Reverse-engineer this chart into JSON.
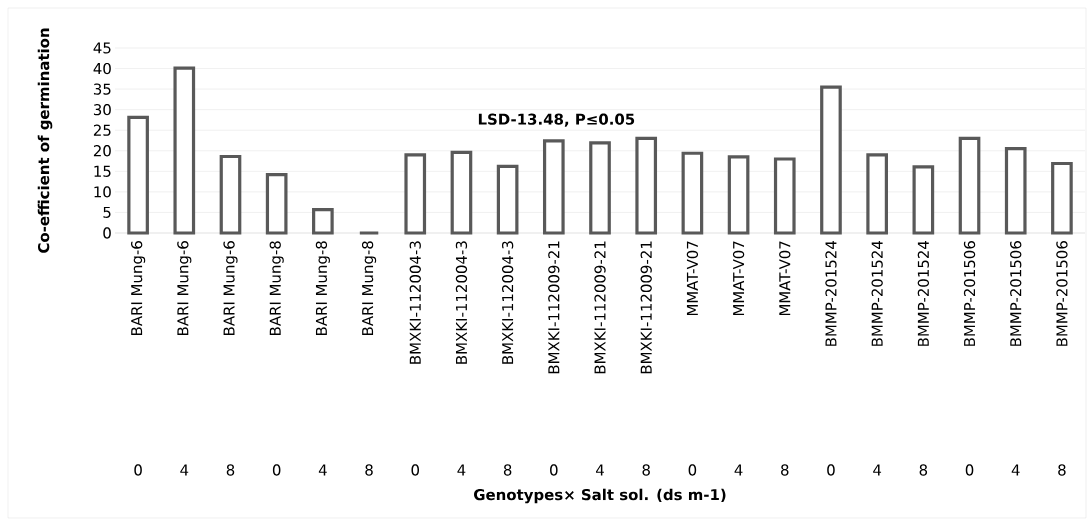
{
  "chart_data": {
    "type": "bar",
    "ylabel": "Co-efficient of germination",
    "categories": [
      "BARI Mung-6",
      "BARI Mung-6",
      "BARI Mung-6",
      "BARI Mung-8",
      "BARI Mung-8",
      "BARI Mung-8",
      "BMXKI-112004-3",
      "BMXKI-112004-3",
      "BMXKI-112004-3",
      "BMXKI-112009-21",
      "BMXKI-112009-21",
      "BMXKI-112009-21",
      "MMAT-V07",
      "MMAT-V07",
      "MMAT-V07",
      "BMMP-201524",
      "BMMP-201524",
      "BMMP-201524",
      "BMMP-201506",
      "BMMP-201506",
      "BMMP-201506"
    ],
    "values": [
      28.1,
      40.1,
      18.6,
      14.2,
      5.7,
      0,
      19.0,
      19.6,
      16.2,
      22.4,
      21.9,
      23.0,
      19.4,
      18.5,
      18.0,
      35.5,
      19.0,
      16.1,
      23.0,
      20.5,
      16.9
    ],
    "color": "#595959",
    "ylim": [
      0,
      45
    ],
    "yticks": [
      0,
      5,
      10,
      15,
      20,
      25,
      30,
      35,
      40,
      45
    ],
    "grid": "y",
    "annotations": [
      "LSD-13.48, P≤0.05",
      "Genotypes× Salt sol. (ds m-1)",
      "0",
      "4",
      "8",
      "0",
      "4",
      "8",
      "0",
      "4",
      "8",
      "0",
      "4",
      "8",
      "0",
      "4",
      "8",
      "0",
      "4",
      "8",
      "0",
      "4",
      "8"
    ]
  }
}
